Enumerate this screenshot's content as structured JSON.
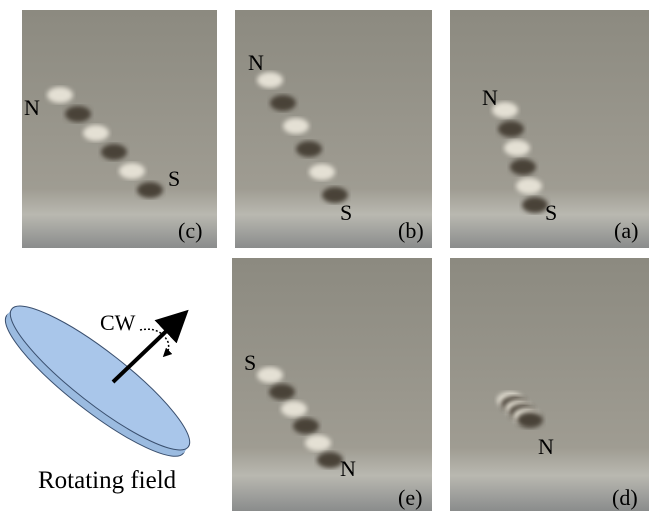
{
  "panels": [
    {
      "label": "(c)",
      "markers": [
        "N",
        "S"
      ]
    },
    {
      "label": "(b)",
      "markers": [
        "N",
        "S"
      ]
    },
    {
      "label": "(a)",
      "markers": [
        "N",
        "S"
      ]
    },
    {
      "label": "(e)",
      "markers": [
        "S",
        "N"
      ]
    },
    {
      "label": "(d)",
      "markers": [
        "N"
      ]
    }
  ],
  "diagram": {
    "rotation_label": "CW",
    "caption": "Rotating field"
  }
}
